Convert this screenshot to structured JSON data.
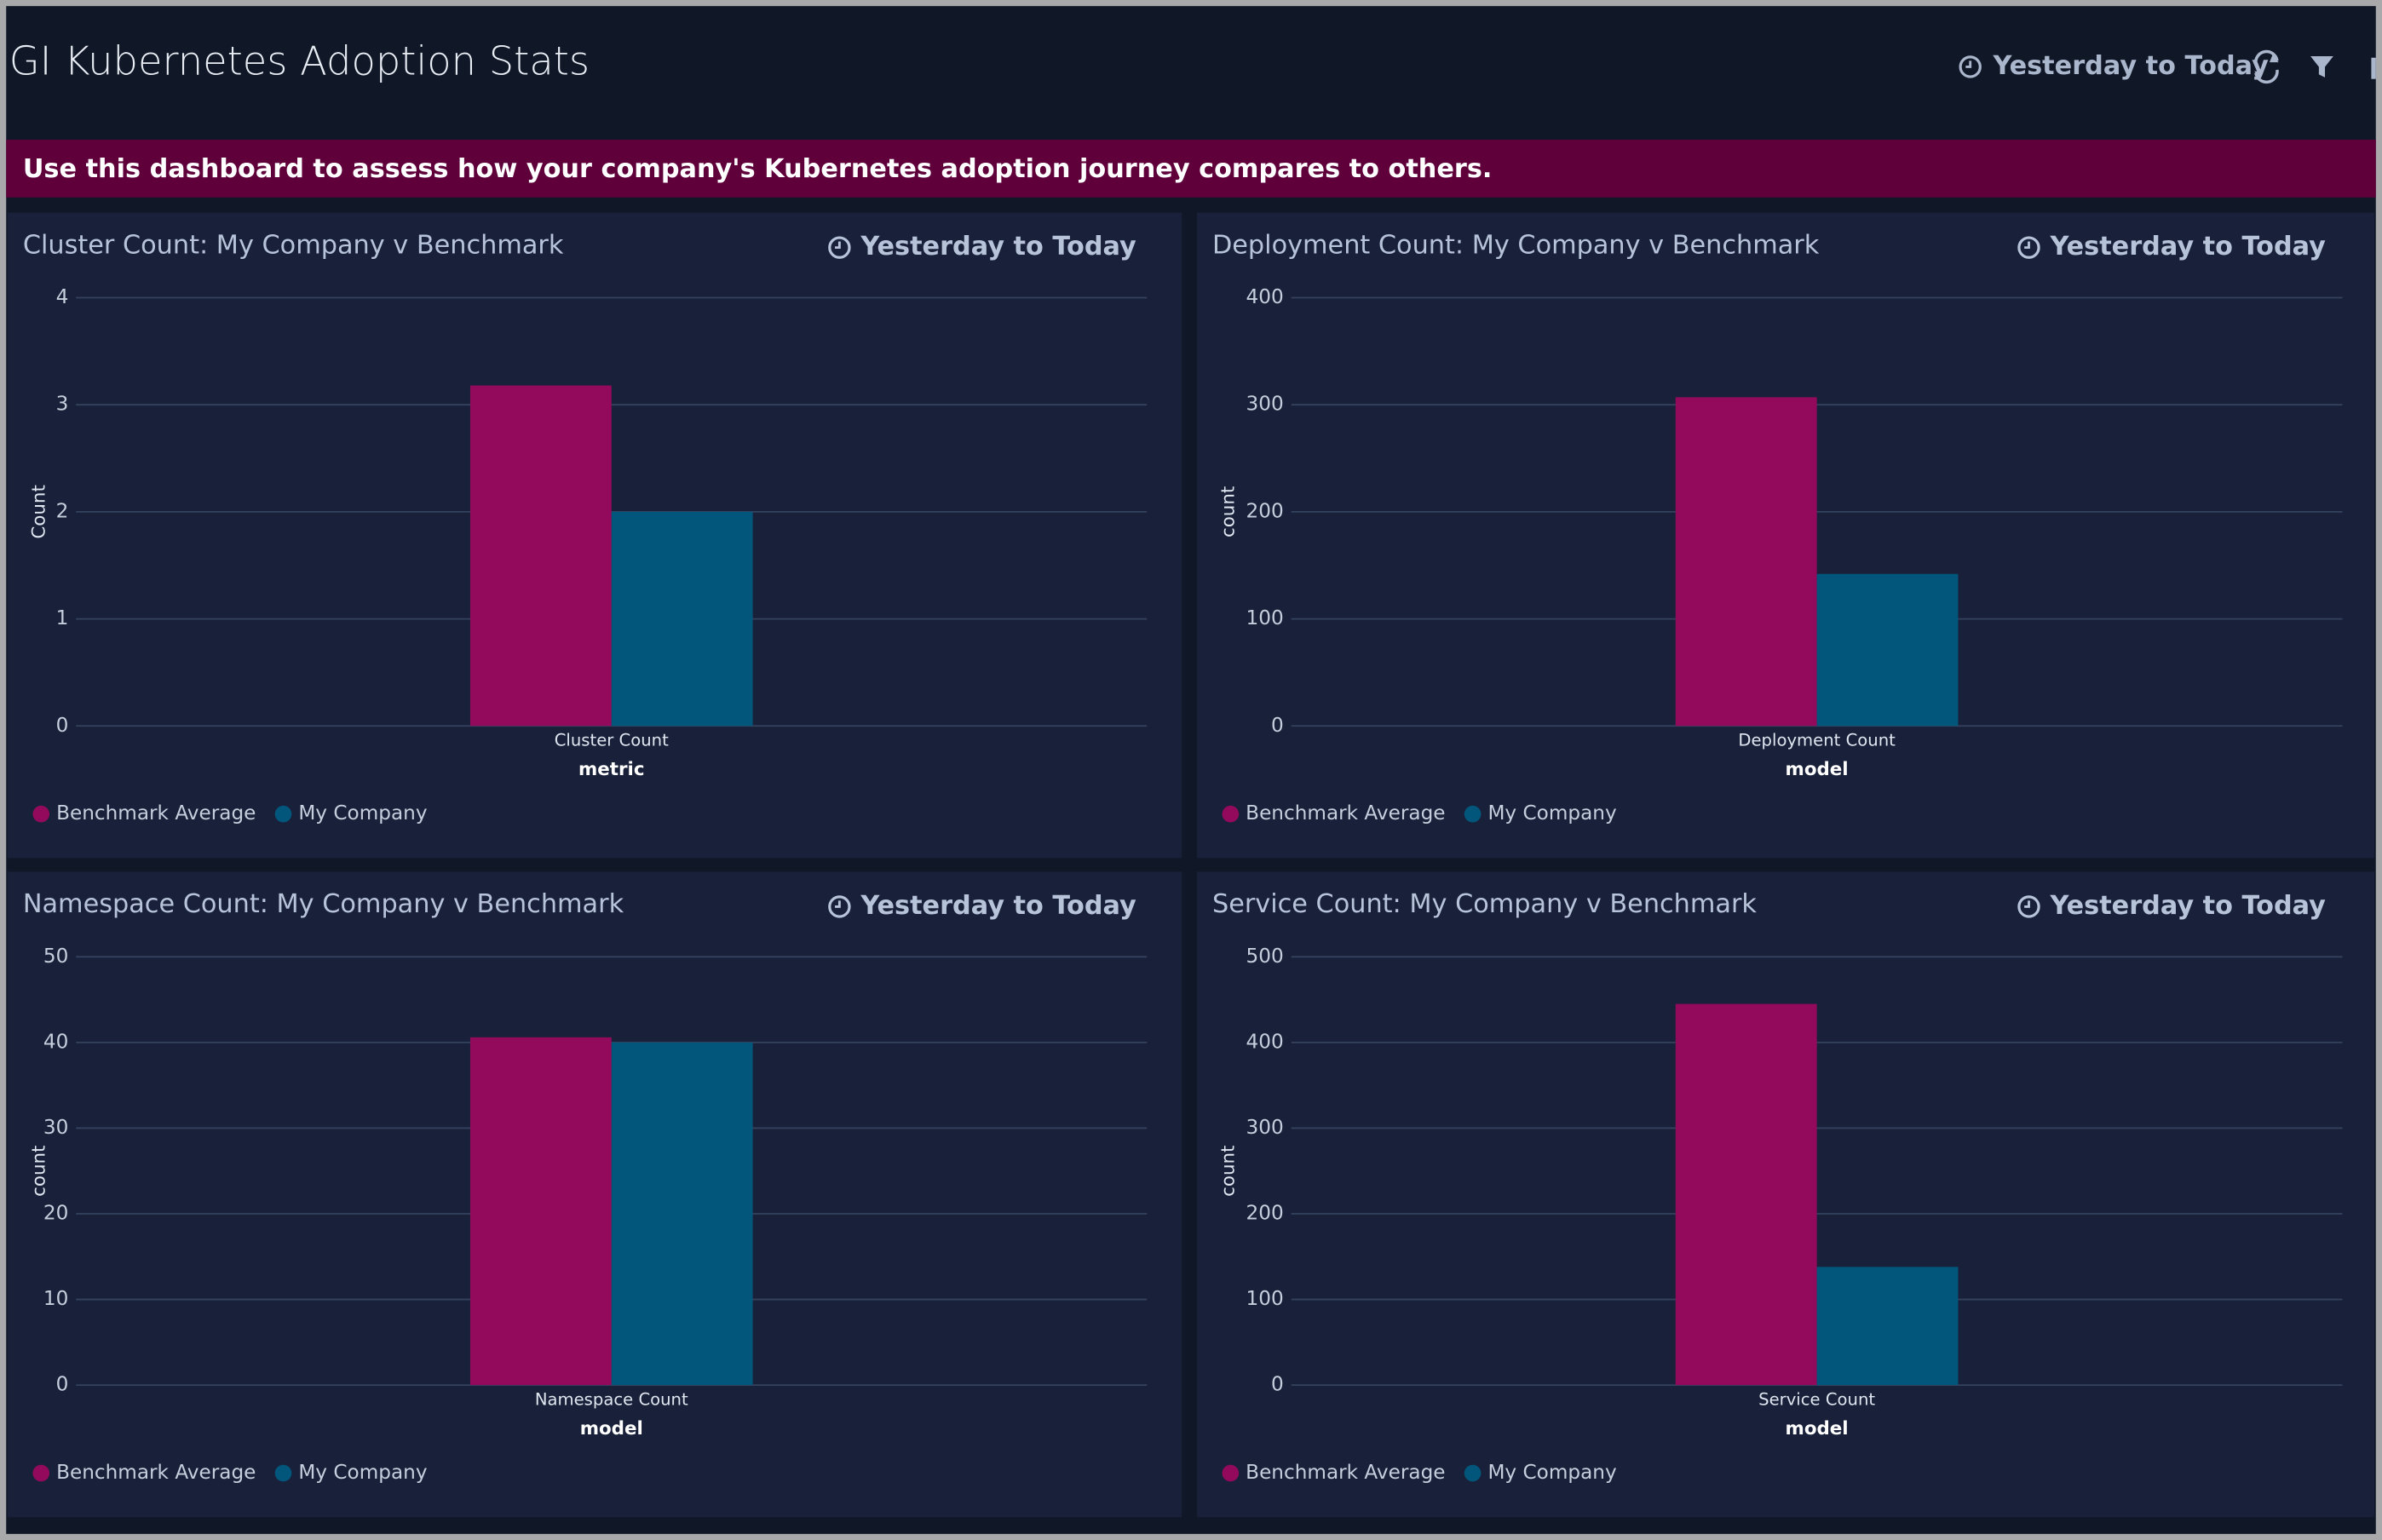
{
  "header": {
    "title": "GI Kubernetes Adoption Stats",
    "time_range": "Yesterday to Today"
  },
  "banner": {
    "text": "Use this dashboard to assess how your company's Kubernetes adoption journey compares to others."
  },
  "chart_data": [
    {
      "type": "bar",
      "title": "Cluster Count: My Company v Benchmark",
      "time_range": "Yesterday to Today",
      "categories": [
        "Cluster Count"
      ],
      "x_label": "metric",
      "y_label": "Count",
      "series": [
        {
          "name": "Benchmark Average",
          "color": "#930a5d",
          "values": [
            3.18
          ]
        },
        {
          "name": "My Company",
          "color": "#02567b",
          "values": [
            2
          ]
        }
      ],
      "ylim": [
        0,
        4
      ],
      "yticks": [
        0,
        1,
        2,
        3,
        4
      ],
      "grid": true,
      "legend": "bottom-left"
    },
    {
      "type": "bar",
      "title": "Deployment Count: My Company v Benchmark",
      "time_range": "Yesterday to Today",
      "categories": [
        "Deployment Count"
      ],
      "x_label": "model",
      "y_label": "count",
      "series": [
        {
          "name": "Benchmark Average",
          "color": "#930a5d",
          "values": [
            307
          ]
        },
        {
          "name": "My Company",
          "color": "#02567b",
          "values": [
            142
          ]
        }
      ],
      "ylim": [
        0,
        400
      ],
      "yticks": [
        0,
        100,
        200,
        300,
        400
      ],
      "grid": true,
      "legend": "bottom-left"
    },
    {
      "type": "bar",
      "title": "Namespace Count: My Company v Benchmark",
      "time_range": "Yesterday to Today",
      "categories": [
        "Namespace Count"
      ],
      "x_label": "model",
      "y_label": "count",
      "series": [
        {
          "name": "Benchmark Average",
          "color": "#930a5d",
          "values": [
            40.6
          ]
        },
        {
          "name": "My Company",
          "color": "#02567b",
          "values": [
            40
          ]
        }
      ],
      "ylim": [
        0,
        50
      ],
      "yticks": [
        0,
        10,
        20,
        30,
        40,
        50
      ],
      "grid": true,
      "legend": "bottom-left"
    },
    {
      "type": "bar",
      "title": "Service Count: My Company v Benchmark",
      "time_range": "Yesterday to Today",
      "categories": [
        "Service Count"
      ],
      "x_label": "model",
      "y_label": "count",
      "series": [
        {
          "name": "Benchmark Average",
          "color": "#930a5d",
          "values": [
            445
          ]
        },
        {
          "name": "My Company",
          "color": "#02567b",
          "values": [
            138
          ]
        }
      ],
      "ylim": [
        0,
        500
      ],
      "yticks": [
        0,
        100,
        200,
        300,
        400,
        500
      ],
      "grid": true,
      "legend": "bottom-left"
    }
  ]
}
